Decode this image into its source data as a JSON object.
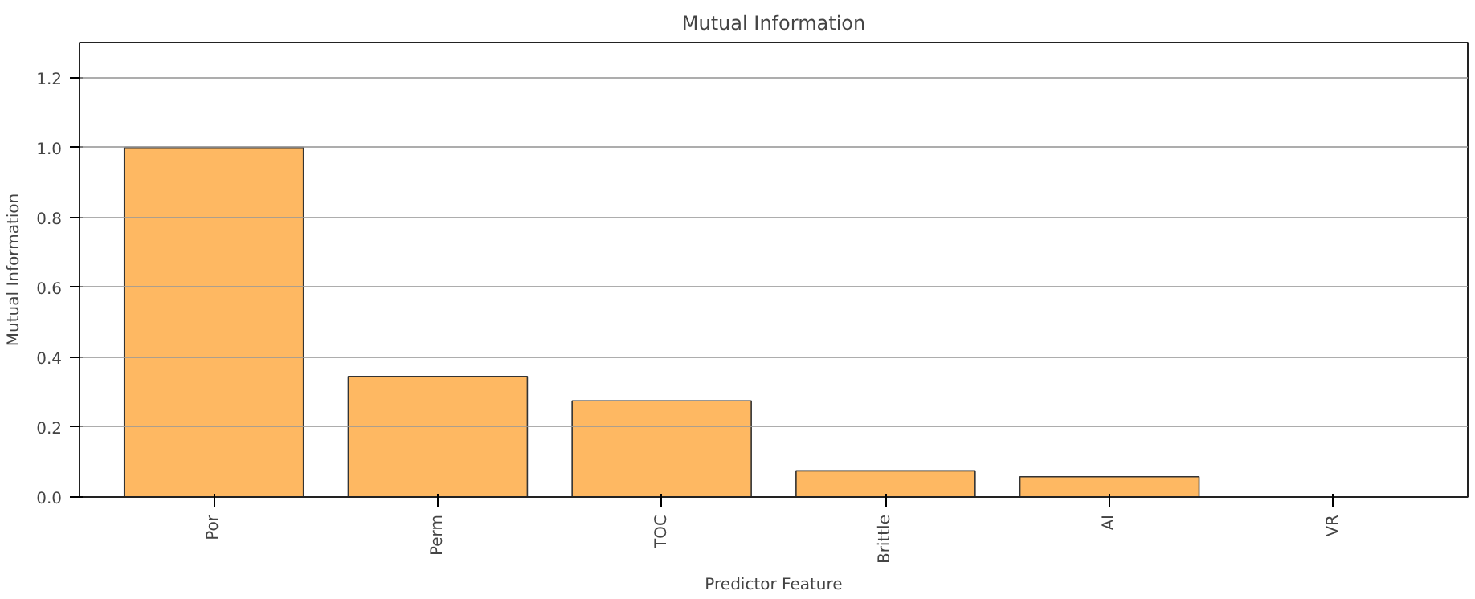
{
  "chart_data": {
    "type": "bar",
    "title": "Mutual Information",
    "xlabel": "Predictor Feature",
    "ylabel": "Mutual Information",
    "categories": [
      "Por",
      "Perm",
      "TOC",
      "Brittle",
      "AI",
      "VR"
    ],
    "values": [
      1.0,
      0.345,
      0.275,
      0.075,
      0.058,
      0.0
    ],
    "color": "#feb862",
    "ylim": [
      0,
      1.3
    ],
    "yticks": [
      {
        "value": 0,
        "label": "0.0"
      },
      0.2,
      0.4,
      0.6,
      0.8,
      {
        "value": 1,
        "label": "1.0"
      },
      1.2
    ],
    "grid": "y"
  }
}
